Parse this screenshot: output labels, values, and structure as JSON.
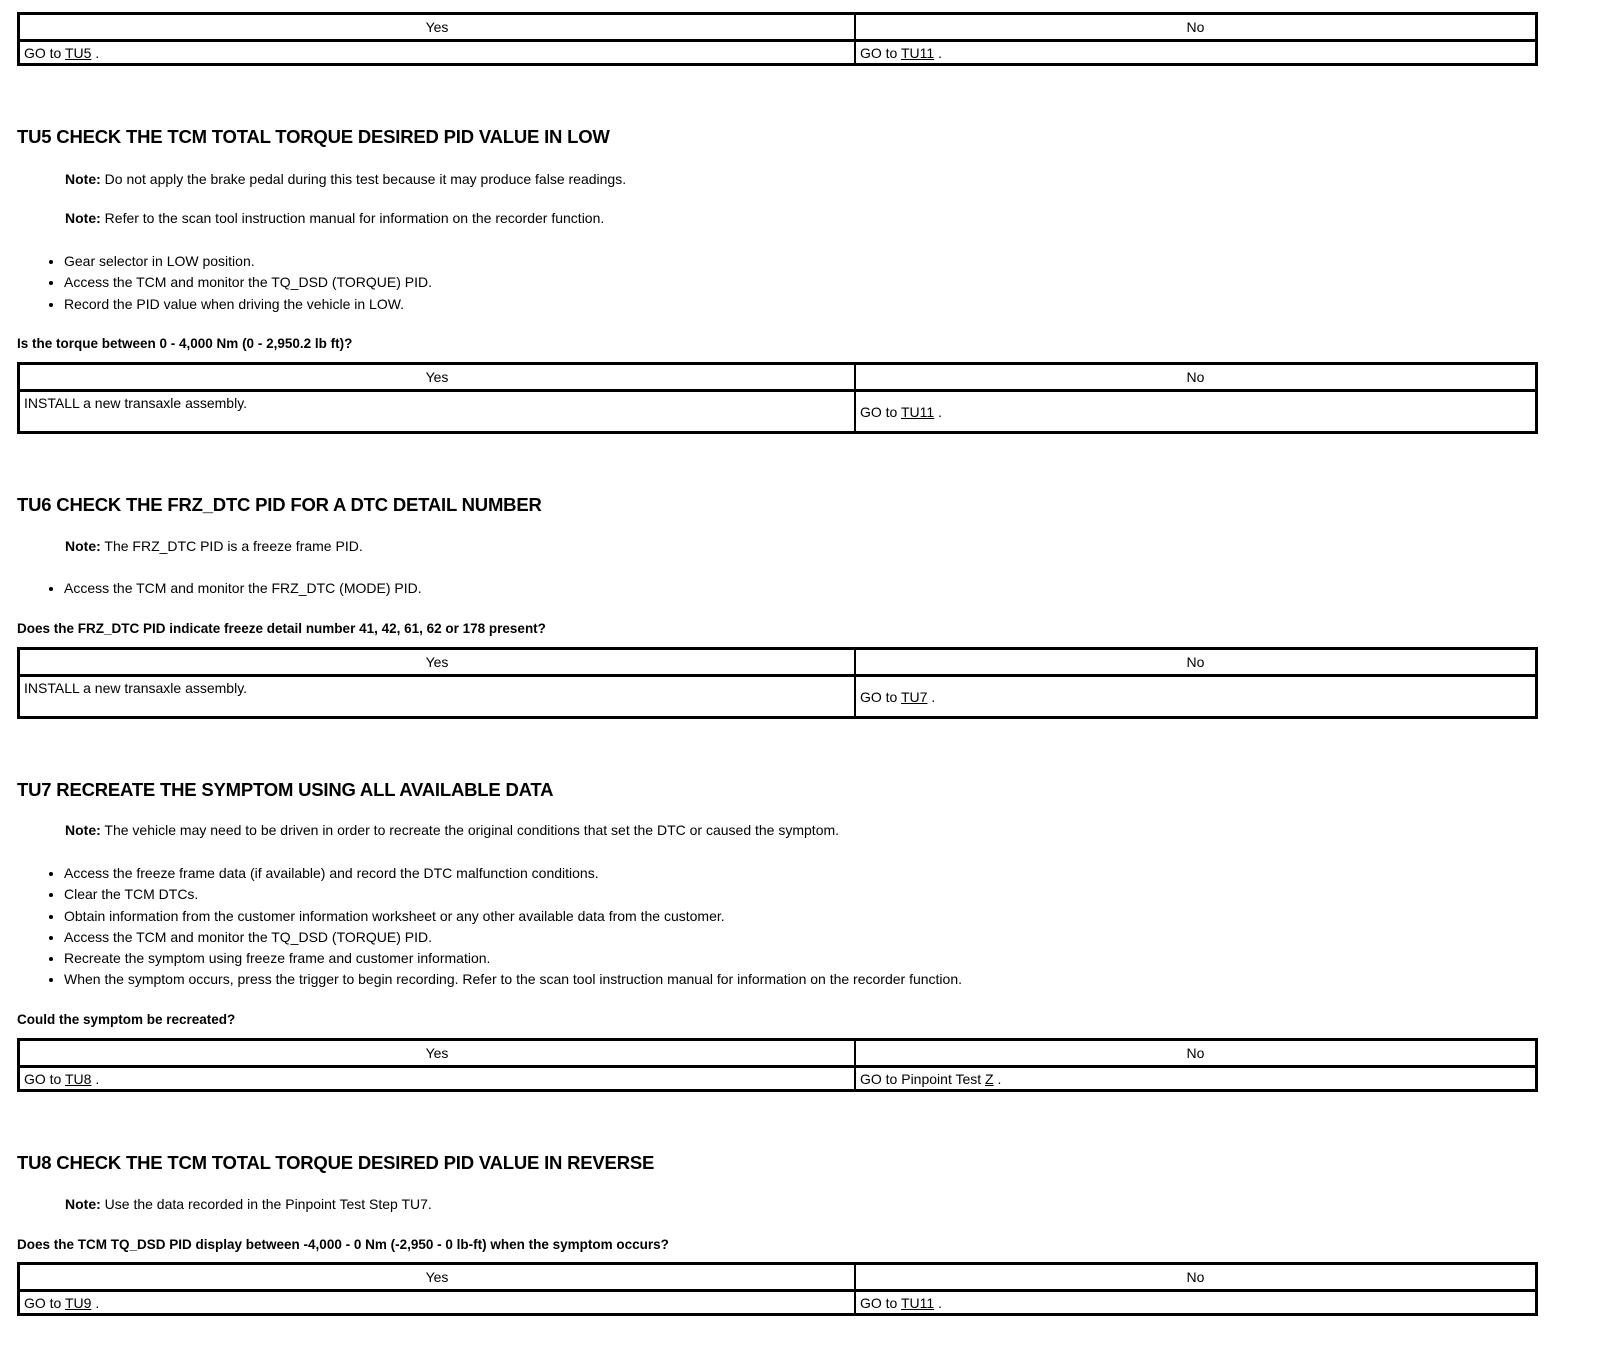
{
  "tables": {
    "t0": {
      "yes_header": "Yes",
      "no_header": "No",
      "yes_prefix": "GO to ",
      "yes_link": "TU5",
      "no_prefix": "GO to ",
      "no_link": "TU11"
    },
    "t1": {
      "yes_header": "Yes",
      "no_header": "No",
      "yes_text": "INSTALL a new transaxle assembly.",
      "no_prefix": "GO to ",
      "no_link": "TU11"
    },
    "t2": {
      "yes_header": "Yes",
      "no_header": "No",
      "yes_text": "INSTALL a new transaxle assembly.",
      "no_prefix": "GO to ",
      "no_link": "TU7"
    },
    "t3": {
      "yes_header": "Yes",
      "no_header": "No",
      "yes_prefix": "GO to ",
      "yes_link": "TU8",
      "no_prefix": "GO to Pinpoint Test ",
      "no_link": "Z"
    },
    "t4": {
      "yes_header": "Yes",
      "no_header": "No",
      "yes_prefix": "GO to ",
      "yes_link": "TU9",
      "no_prefix": "GO to ",
      "no_link": "TU11"
    }
  },
  "note_label": "Note:",
  "tu5": {
    "heading": "TU5 CHECK THE TCM TOTAL TORQUE DESIRED PID VALUE IN LOW",
    "notes": [
      "Do not apply the brake pedal during this test because it may produce false readings.",
      "Refer to the scan tool instruction manual for information on the recorder function."
    ],
    "bullets": [
      "Gear selector in LOW position.",
      "Access the TCM and monitor the TQ_DSD (TORQUE) PID.",
      "Record the PID value when driving the vehicle in LOW."
    ],
    "question": "Is the torque between 0 - 4,000 Nm (0 - 2,950.2 lb ft)?"
  },
  "tu6": {
    "heading": "TU6 CHECK THE FRZ_DTC PID FOR A DTC DETAIL NUMBER",
    "notes": [
      "The FRZ_DTC PID is a freeze frame PID."
    ],
    "bullets": [
      "Access the TCM and monitor the FRZ_DTC (MODE) PID."
    ],
    "question": "Does the FRZ_DTC PID indicate freeze detail number 41, 42, 61, 62 or 178 present?"
  },
  "tu7": {
    "heading": "TU7 RECREATE THE SYMPTOM USING ALL AVAILABLE DATA",
    "notes": [
      "The vehicle may need to be driven in order to recreate the original conditions that set the DTC or caused the symptom."
    ],
    "bullets": [
      "Access the freeze frame data (if available) and record the DTC malfunction conditions.",
      "Clear the TCM DTCs.",
      "Obtain information from the customer information worksheet or any other available data from the customer.",
      "Access the TCM and monitor the TQ_DSD (TORQUE) PID.",
      "Recreate the symptom using freeze frame and customer information.",
      "When the symptom occurs, press the trigger to begin recording. Refer to the scan tool instruction manual for information on the recorder function."
    ],
    "question": "Could the symptom be recreated?"
  },
  "tu8": {
    "heading": "TU8 CHECK THE TCM TOTAL TORQUE DESIRED PID VALUE IN REVERSE",
    "notes": [
      "Use the data recorded in the Pinpoint Test Step TU7."
    ],
    "question": "Does the TCM TQ_DSD PID display between -4,000 - 0 Nm (-2,950 - 0 lb-ft) when the symptom occurs?"
  }
}
